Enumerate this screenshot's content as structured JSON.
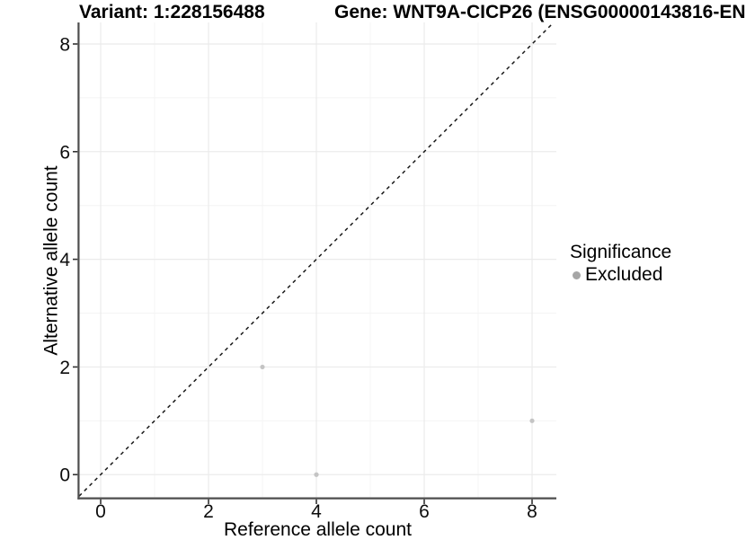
{
  "page": {
    "background": "#ffffff"
  },
  "header": {
    "title_left": "Variant: 1:228156488",
    "title_right": "Gene: WNT9A-CICP26 (ENSG00000143816-EN"
  },
  "chart_data": {
    "type": "scatter",
    "title": "Variant: 1:228156488 / Gene: WNT9A-CICP26 (ENSG00000143816-EN…)",
    "xlabel": "Reference allele count",
    "ylabel": "Alternative allele count",
    "xlim": [
      -0.4,
      8.45
    ],
    "ylim": [
      -0.43,
      8.4
    ],
    "x_ticks": [
      0,
      2,
      4,
      6,
      8
    ],
    "y_ticks": [
      0,
      2,
      4,
      6,
      8
    ],
    "x_minor": [
      1,
      3,
      5,
      7
    ],
    "y_minor": [
      1,
      3,
      5,
      7
    ],
    "grid": "on",
    "identity_line": {
      "kind": "abline",
      "slope": 1,
      "intercept": 0,
      "style": "dashed",
      "color": "#1a1a1a"
    },
    "series": [
      {
        "name": "Excluded",
        "color": "#c4c4c4",
        "points": [
          {
            "x": 3,
            "y": 2
          },
          {
            "x": 4,
            "y": 0
          },
          {
            "x": 8,
            "y": 1
          }
        ]
      }
    ],
    "legend": {
      "title": "Significance",
      "position": "right",
      "items": [
        {
          "label": "Excluded",
          "color": "#a6a6a6"
        }
      ]
    }
  },
  "colors": {
    "major_grid": "#ebebeb",
    "minor_grid": "#f4f4f4",
    "axis_line": "#4e4e4e",
    "tick_mark": "#333333",
    "tick_text": "#0d0d0d",
    "point": "#c4c4c4",
    "dashed_line": "#1a1a1a"
  }
}
